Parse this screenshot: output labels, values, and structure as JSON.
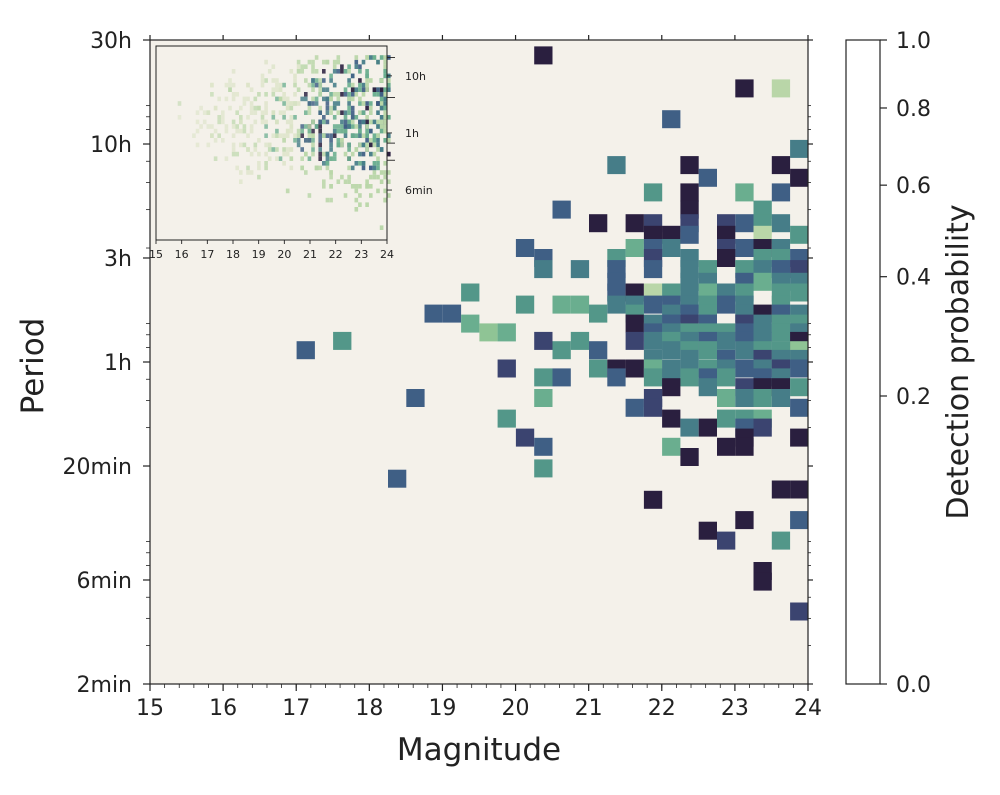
{
  "chart_data": {
    "type": "heatmap",
    "xlabel": "Magnitude",
    "ylabel": "Period",
    "xlim": [
      15,
      24
    ],
    "x_ticks": [
      15,
      16,
      17,
      18,
      19,
      20,
      21,
      22,
      23,
      24
    ],
    "y_ticks": [
      {
        "label": "30h",
        "minutes": 1800
      },
      {
        "label": "10h",
        "minutes": 600
      },
      {
        "label": "3h",
        "minutes": 180
      },
      {
        "label": "1h",
        "minutes": 60
      },
      {
        "label": "20min",
        "minutes": 20
      },
      {
        "label": "6min",
        "minutes": 6
      },
      {
        "label": "2min",
        "minutes": 2
      }
    ],
    "y_scale": "log",
    "ylim_minutes": [
      2,
      1800
    ],
    "background_color": "#f4f1ea",
    "colorbar": {
      "label": "Detection probability",
      "ticks": [
        {
          "label": "1.0",
          "value": 1.0
        },
        {
          "label": "0.8",
          "value": 0.8
        },
        {
          "label": "0.6",
          "value": 0.6
        },
        {
          "label": "0.4",
          "value": 0.4
        },
        {
          "label": "0.2",
          "value": 0.2
        },
        {
          "label": "0.0",
          "value": 0.0
        }
      ],
      "colors": [
        "#f4f1ea",
        "#dbe3c6",
        "#b9d6a8",
        "#8fc495",
        "#6aae8f",
        "#539789",
        "#467d88",
        "#3f5f85",
        "#3b4470",
        "#2a1f3f"
      ]
    },
    "cells": [
      [
        20.38,
        1530,
        10
      ],
      [
        23.13,
        1080,
        10
      ],
      [
        23.63,
        1080,
        2
      ],
      [
        22.13,
        780,
        7
      ],
      [
        23.88,
        570,
        6
      ],
      [
        21.38,
        480,
        6
      ],
      [
        22.38,
        480,
        10
      ],
      [
        23.63,
        480,
        10
      ],
      [
        22.63,
        420,
        7
      ],
      [
        23.88,
        420,
        10
      ],
      [
        21.88,
        360,
        5
      ],
      [
        22.38,
        360,
        10
      ],
      [
        23.13,
        360,
        4
      ],
      [
        23.63,
        360,
        7
      ],
      [
        20.63,
        300,
        7
      ],
      [
        22.38,
        300,
        10
      ],
      [
        23.38,
        300,
        5
      ],
      [
        21.13,
        260,
        10
      ],
      [
        21.63,
        260,
        10
      ],
      [
        21.88,
        260,
        8
      ],
      [
        22.38,
        260,
        8
      ],
      [
        22.88,
        260,
        8
      ],
      [
        23.13,
        260,
        7
      ],
      [
        23.38,
        260,
        5
      ],
      [
        23.63,
        260,
        6
      ],
      [
        21.88,
        230,
        10
      ],
      [
        22.13,
        230,
        10
      ],
      [
        22.38,
        230,
        7
      ],
      [
        22.88,
        230,
        9
      ],
      [
        23.38,
        230,
        2
      ],
      [
        23.88,
        230,
        5
      ],
      [
        20.13,
        200,
        7
      ],
      [
        21.63,
        200,
        4
      ],
      [
        21.88,
        200,
        7
      ],
      [
        22.13,
        200,
        6
      ],
      [
        22.88,
        200,
        8
      ],
      [
        23.13,
        200,
        7
      ],
      [
        23.38,
        200,
        9
      ],
      [
        23.63,
        200,
        6
      ],
      [
        20.38,
        180,
        7
      ],
      [
        21.38,
        180,
        5
      ],
      [
        21.88,
        180,
        8
      ],
      [
        22.38,
        180,
        6
      ],
      [
        22.88,
        180,
        10
      ],
      [
        23.38,
        180,
        5
      ],
      [
        23.63,
        180,
        5
      ],
      [
        23.88,
        180,
        7
      ],
      [
        20.38,
        160,
        6
      ],
      [
        20.88,
        160,
        6
      ],
      [
        21.38,
        160,
        7
      ],
      [
        21.88,
        160,
        7
      ],
      [
        22.38,
        160,
        6
      ],
      [
        22.63,
        160,
        5
      ],
      [
        23.13,
        160,
        5
      ],
      [
        23.38,
        160,
        6
      ],
      [
        23.63,
        160,
        7
      ],
      [
        23.88,
        160,
        8
      ],
      [
        21.38,
        140,
        7
      ],
      [
        22.38,
        140,
        6
      ],
      [
        22.63,
        140,
        6
      ],
      [
        23.13,
        140,
        7
      ],
      [
        23.38,
        140,
        4
      ],
      [
        23.63,
        140,
        6
      ],
      [
        23.88,
        140,
        6
      ],
      [
        19.38,
        125,
        5
      ],
      [
        21.38,
        125,
        7
      ],
      [
        21.63,
        125,
        9
      ],
      [
        21.88,
        125,
        2
      ],
      [
        22.13,
        125,
        5
      ],
      [
        22.38,
        125,
        6
      ],
      [
        22.63,
        125,
        4
      ],
      [
        22.88,
        125,
        6
      ],
      [
        23.13,
        125,
        5
      ],
      [
        23.63,
        125,
        5
      ],
      [
        23.88,
        125,
        5
      ],
      [
        20.13,
        110,
        5
      ],
      [
        20.63,
        110,
        4
      ],
      [
        20.88,
        110,
        4
      ],
      [
        21.38,
        110,
        6
      ],
      [
        21.63,
        110,
        6
      ],
      [
        21.88,
        110,
        7
      ],
      [
        22.13,
        110,
        7
      ],
      [
        22.38,
        110,
        6
      ],
      [
        22.63,
        110,
        5
      ],
      [
        22.88,
        110,
        7
      ],
      [
        23.13,
        110,
        6
      ],
      [
        23.63,
        110,
        5
      ],
      [
        18.88,
        100,
        7
      ],
      [
        19.13,
        100,
        7
      ],
      [
        21.13,
        100,
        5
      ],
      [
        21.63,
        100,
        5
      ],
      [
        22.13,
        100,
        6
      ],
      [
        22.38,
        100,
        7
      ],
      [
        22.63,
        100,
        5
      ],
      [
        23.13,
        100,
        6
      ],
      [
        23.38,
        100,
        10
      ],
      [
        23.63,
        100,
        7
      ],
      [
        23.88,
        100,
        6
      ],
      [
        19.38,
        90,
        4
      ],
      [
        21.63,
        90,
        10
      ],
      [
        21.88,
        90,
        6
      ],
      [
        22.13,
        90,
        7
      ],
      [
        22.38,
        90,
        8
      ],
      [
        22.63,
        90,
        7
      ],
      [
        23.13,
        90,
        8
      ],
      [
        23.38,
        90,
        6
      ],
      [
        23.63,
        90,
        5
      ],
      [
        23.88,
        90,
        5
      ],
      [
        19.63,
        82,
        3
      ],
      [
        19.88,
        82,
        4
      ],
      [
        21.88,
        82,
        7
      ],
      [
        22.13,
        82,
        6
      ],
      [
        22.38,
        82,
        5
      ],
      [
        22.63,
        82,
        5
      ],
      [
        22.88,
        82,
        5
      ],
      [
        23.13,
        82,
        7
      ],
      [
        23.38,
        82,
        6
      ],
      [
        23.63,
        82,
        5
      ],
      [
        23.88,
        82,
        6
      ],
      [
        17.63,
        75,
        5
      ],
      [
        20.38,
        75,
        8
      ],
      [
        20.88,
        75,
        5
      ],
      [
        21.63,
        75,
        8
      ],
      [
        21.88,
        75,
        6
      ],
      [
        22.13,
        75,
        5
      ],
      [
        22.38,
        75,
        6
      ],
      [
        22.63,
        75,
        7
      ],
      [
        22.88,
        75,
        6
      ],
      [
        23.13,
        75,
        7
      ],
      [
        23.38,
        75,
        6
      ],
      [
        23.88,
        75,
        9
      ],
      [
        17.13,
        68,
        7
      ],
      [
        20.63,
        68,
        5
      ],
      [
        21.13,
        68,
        7
      ],
      [
        22.13,
        68,
        6
      ],
      [
        22.38,
        68,
        5
      ],
      [
        22.63,
        68,
        5
      ],
      [
        23.13,
        68,
        6
      ],
      [
        23.38,
        68,
        5
      ],
      [
        23.63,
        68,
        5
      ],
      [
        23.88,
        68,
        3
      ],
      [
        21.88,
        62,
        6
      ],
      [
        22.38,
        62,
        6
      ],
      [
        22.88,
        62,
        7
      ],
      [
        23.38,
        62,
        8
      ],
      [
        23.63,
        62,
        6
      ],
      [
        23.88,
        62,
        6
      ],
      [
        19.88,
        56,
        8
      ],
      [
        21.13,
        56,
        5
      ],
      [
        21.38,
        56,
        9
      ],
      [
        21.63,
        56,
        10
      ],
      [
        21.88,
        56,
        4
      ],
      [
        22.13,
        56,
        6
      ],
      [
        22.38,
        56,
        6
      ],
      [
        22.63,
        56,
        5
      ],
      [
        22.88,
        56,
        6
      ],
      [
        23.13,
        56,
        7
      ],
      [
        23.38,
        56,
        6
      ],
      [
        23.63,
        56,
        8
      ],
      [
        23.88,
        56,
        7
      ],
      [
        20.38,
        51,
        5
      ],
      [
        20.63,
        51,
        7
      ],
      [
        21.38,
        51,
        7
      ],
      [
        21.88,
        51,
        5
      ],
      [
        22.13,
        51,
        6
      ],
      [
        22.38,
        51,
        5
      ],
      [
        22.63,
        51,
        7
      ],
      [
        22.88,
        51,
        5
      ],
      [
        23.38,
        51,
        7
      ],
      [
        23.63,
        51,
        6
      ],
      [
        22.13,
        46,
        10
      ],
      [
        22.63,
        46,
        6
      ],
      [
        23.13,
        46,
        8
      ],
      [
        23.38,
        46,
        10
      ],
      [
        23.63,
        46,
        9
      ],
      [
        23.88,
        46,
        5
      ],
      [
        18.63,
        41,
        7
      ],
      [
        20.38,
        41,
        4
      ],
      [
        21.88,
        41,
        8
      ],
      [
        22.88,
        41,
        4
      ],
      [
        23.13,
        41,
        6
      ],
      [
        23.38,
        41,
        5
      ],
      [
        23.63,
        41,
        6
      ],
      [
        21.63,
        37,
        7
      ],
      [
        21.88,
        37,
        8
      ],
      [
        23.88,
        37,
        7
      ],
      [
        19.88,
        33,
        5
      ],
      [
        22.13,
        33,
        10
      ],
      [
        22.88,
        33,
        5
      ],
      [
        23.13,
        33,
        5
      ],
      [
        23.38,
        33,
        4
      ],
      [
        22.38,
        30,
        6
      ],
      [
        22.63,
        30,
        10
      ],
      [
        23.13,
        30,
        7
      ],
      [
        23.38,
        30,
        8
      ],
      [
        20.13,
        27,
        8
      ],
      [
        23.13,
        27,
        10
      ],
      [
        23.88,
        27,
        10
      ],
      [
        20.38,
        24.5,
        7
      ],
      [
        22.13,
        24.5,
        4
      ],
      [
        22.88,
        24.5,
        10
      ],
      [
        23.13,
        24.5,
        10
      ],
      [
        22.38,
        22,
        10
      ],
      [
        20.38,
        19.5,
        5
      ],
      [
        18.38,
        17.5,
        7
      ],
      [
        23.88,
        15.6,
        10
      ],
      [
        23.63,
        15.6,
        10
      ],
      [
        21.88,
        14,
        10
      ],
      [
        23.13,
        11.3,
        10
      ],
      [
        23.88,
        11.3,
        7
      ],
      [
        22.63,
        10.1,
        10
      ],
      [
        23.63,
        9.1,
        5
      ],
      [
        22.88,
        9.1,
        8
      ],
      [
        23.38,
        6.6,
        10
      ],
      [
        23.38,
        5.9,
        10
      ],
      [
        23.88,
        4.3,
        8
      ]
    ],
    "inset": {
      "x_ticks": [
        15,
        16,
        17,
        18,
        19,
        20,
        21,
        22,
        23,
        24
      ],
      "y_ticks": [
        {
          "label": "10h",
          "minutes": 600
        },
        {
          "label": "1h",
          "minutes": 60
        },
        {
          "label": "6min",
          "minutes": 6
        }
      ],
      "ylim_minutes": [
        0.8,
        2000
      ]
    }
  }
}
